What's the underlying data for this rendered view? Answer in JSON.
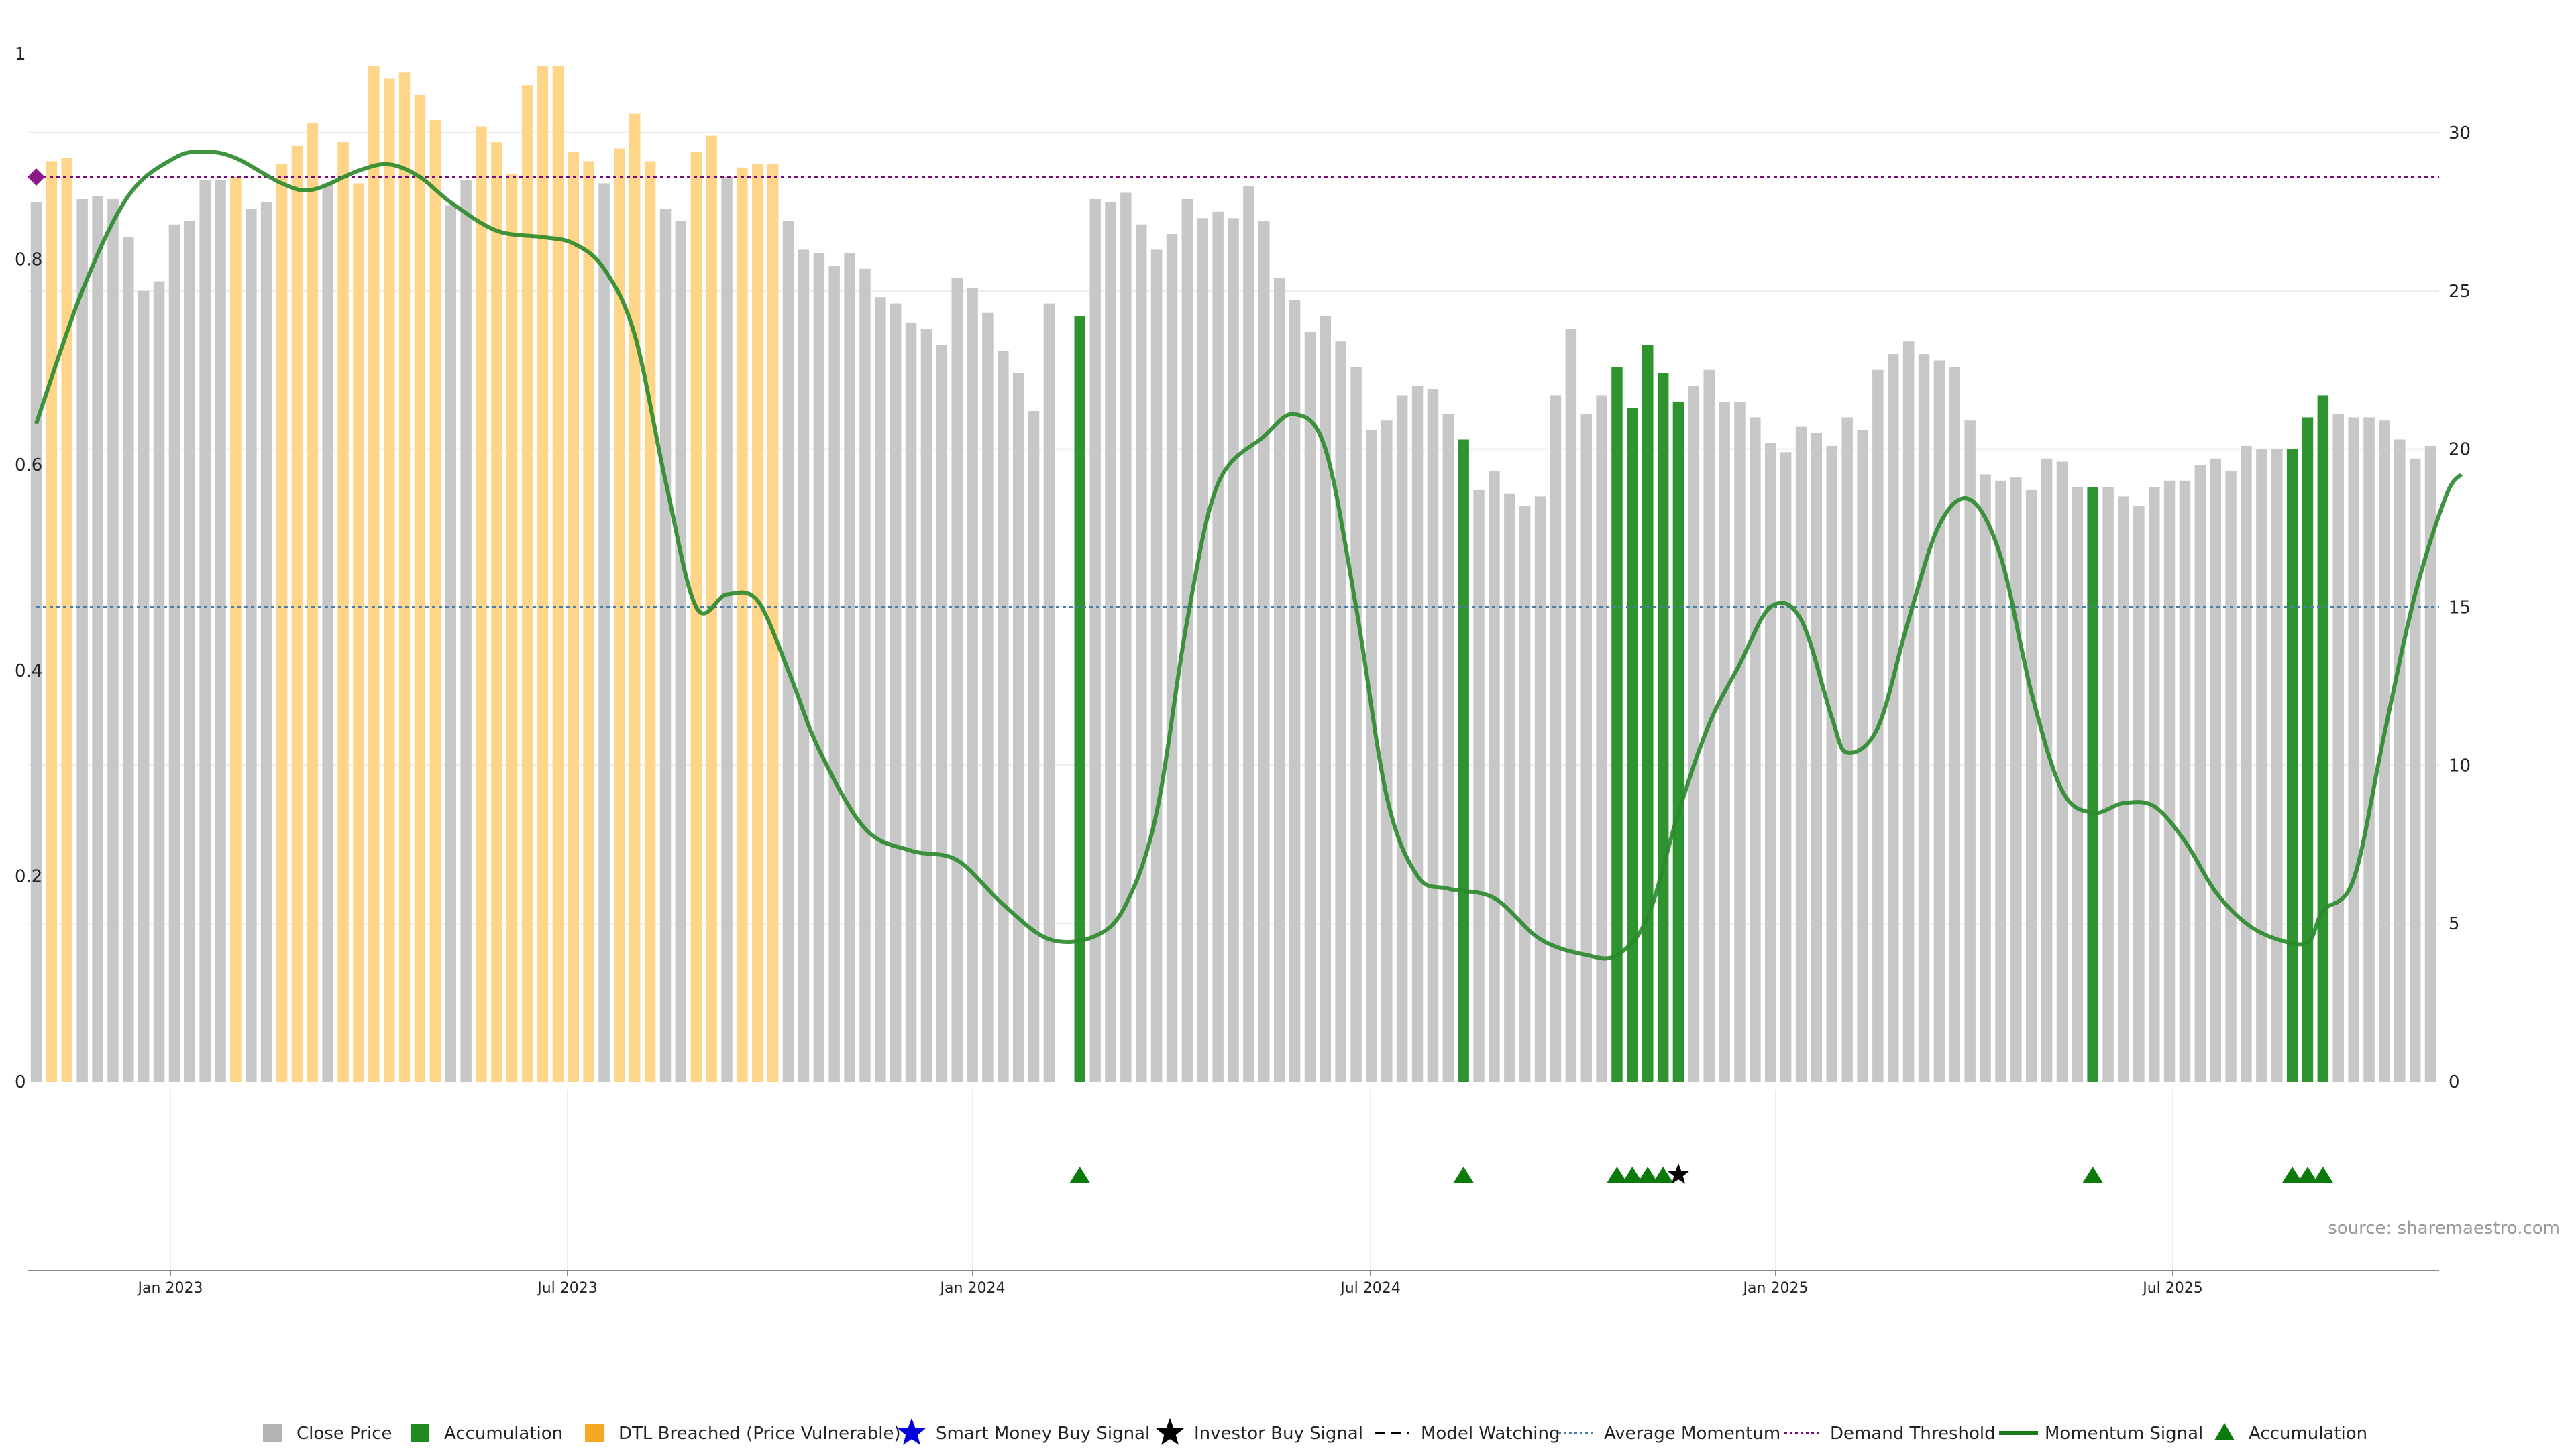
{
  "chart_data": {
    "type": "bar",
    "source": "source: sharemaestro.com",
    "left_axis": {
      "ticks": [
        "0",
        "0.2",
        "0.4",
        "0.6",
        "0.8",
        "1"
      ],
      "range": [
        0,
        1
      ]
    },
    "right_axis": {
      "ticks": [
        "0",
        "5",
        "10",
        "15",
        "20",
        "25",
        "30"
      ],
      "range": [
        0,
        32.5
      ]
    },
    "x_dates": [
      "Jan 2023",
      "Jul 2023",
      "Jan 2024",
      "Jul 2024",
      "Jan 2025",
      "Jul 2025"
    ],
    "bar_categories": [
      "close",
      "accumulation",
      "dtl_breached"
    ],
    "bars": [
      [
        27.8,
        0
      ],
      [
        29.1,
        2
      ],
      [
        29.2,
        2
      ],
      [
        27.9,
        0
      ],
      [
        28.0,
        0
      ],
      [
        27.9,
        0
      ],
      [
        26.7,
        0
      ],
      [
        25.0,
        0
      ],
      [
        25.3,
        0
      ],
      [
        27.1,
        0
      ],
      [
        27.2,
        0
      ],
      [
        28.5,
        0
      ],
      [
        28.5,
        0
      ],
      [
        28.6,
        2
      ],
      [
        27.6,
        0
      ],
      [
        27.8,
        0
      ],
      [
        29.0,
        2
      ],
      [
        29.6,
        2
      ],
      [
        30.3,
        2
      ],
      [
        28.4,
        0
      ],
      [
        29.7,
        2
      ],
      [
        28.4,
        2
      ],
      [
        32.1,
        2
      ],
      [
        31.7,
        2
      ],
      [
        31.9,
        2
      ],
      [
        31.2,
        2
      ],
      [
        30.4,
        2
      ],
      [
        27.7,
        0
      ],
      [
        28.5,
        0
      ],
      [
        30.2,
        2
      ],
      [
        29.7,
        2
      ],
      [
        28.7,
        2
      ],
      [
        31.5,
        2
      ],
      [
        32.1,
        2
      ],
      [
        32.1,
        2
      ],
      [
        29.4,
        2
      ],
      [
        29.1,
        2
      ],
      [
        28.4,
        0
      ],
      [
        29.5,
        2
      ],
      [
        30.6,
        2
      ],
      [
        29.1,
        2
      ],
      [
        27.6,
        0
      ],
      [
        27.2,
        0
      ],
      [
        29.4,
        2
      ],
      [
        29.9,
        2
      ],
      [
        28.6,
        0
      ],
      [
        28.9,
        2
      ],
      [
        29.0,
        2
      ],
      [
        29.0,
        2
      ],
      [
        27.2,
        0
      ],
      [
        26.3,
        0
      ],
      [
        26.2,
        0
      ],
      [
        25.8,
        0
      ],
      [
        26.2,
        0
      ],
      [
        25.7,
        0
      ],
      [
        24.8,
        0
      ],
      [
        24.6,
        0
      ],
      [
        24.0,
        0
      ],
      [
        23.8,
        0
      ],
      [
        23.3,
        0
      ],
      [
        25.4,
        0
      ],
      [
        25.1,
        0
      ],
      [
        24.3,
        0
      ],
      [
        23.1,
        0
      ],
      [
        22.4,
        0
      ],
      [
        21.2,
        0
      ],
      [
        24.6,
        0
      ],
      [
        null,
        0
      ],
      [
        24.2,
        1
      ],
      [
        27.9,
        0
      ],
      [
        27.8,
        0
      ],
      [
        28.1,
        0
      ],
      [
        27.1,
        0
      ],
      [
        26.3,
        0
      ],
      [
        26.8,
        0
      ],
      [
        27.9,
        0
      ],
      [
        27.3,
        0
      ],
      [
        27.5,
        0
      ],
      [
        27.3,
        0
      ],
      [
        28.3,
        0
      ],
      [
        27.2,
        0
      ],
      [
        25.4,
        0
      ],
      [
        24.7,
        0
      ],
      [
        23.7,
        0
      ],
      [
        24.2,
        0
      ],
      [
        23.4,
        0
      ],
      [
        22.6,
        0
      ],
      [
        20.6,
        0
      ],
      [
        20.9,
        0
      ],
      [
        21.7,
        0
      ],
      [
        22.0,
        0
      ],
      [
        21.9,
        0
      ],
      [
        21.1,
        0
      ],
      [
        20.3,
        1
      ],
      [
        18.7,
        0
      ],
      [
        19.3,
        0
      ],
      [
        18.6,
        0
      ],
      [
        18.2,
        0
      ],
      [
        18.5,
        0
      ],
      [
        21.7,
        0
      ],
      [
        23.8,
        0
      ],
      [
        21.1,
        0
      ],
      [
        21.7,
        0
      ],
      [
        22.6,
        1
      ],
      [
        21.3,
        1
      ],
      [
        23.3,
        1
      ],
      [
        22.4,
        1
      ],
      [
        21.5,
        1
      ],
      [
        22.0,
        0
      ],
      [
        22.5,
        0
      ],
      [
        21.5,
        0
      ],
      [
        21.5,
        0
      ],
      [
        21.0,
        0
      ],
      [
        20.2,
        0
      ],
      [
        19.9,
        0
      ],
      [
        20.7,
        0
      ],
      [
        20.5,
        0
      ],
      [
        20.1,
        0
      ],
      [
        21.0,
        0
      ],
      [
        20.6,
        0
      ],
      [
        22.5,
        0
      ],
      [
        23.0,
        0
      ],
      [
        23.4,
        0
      ],
      [
        23.0,
        0
      ],
      [
        22.8,
        0
      ],
      [
        22.6,
        0
      ],
      [
        20.9,
        0
      ],
      [
        19.2,
        0
      ],
      [
        19.0,
        0
      ],
      [
        19.1,
        0
      ],
      [
        18.7,
        0
      ],
      [
        19.7,
        0
      ],
      [
        19.6,
        0
      ],
      [
        18.8,
        0
      ],
      [
        18.8,
        1
      ],
      [
        18.8,
        0
      ],
      [
        18.5,
        0
      ],
      [
        18.2,
        0
      ],
      [
        18.8,
        0
      ],
      [
        19.0,
        0
      ],
      [
        19.0,
        0
      ],
      [
        19.5,
        0
      ],
      [
        19.7,
        0
      ],
      [
        19.3,
        0
      ],
      [
        20.1,
        0
      ],
      [
        20.0,
        0
      ],
      [
        20.0,
        0
      ],
      [
        20.0,
        1
      ],
      [
        21.0,
        1
      ],
      [
        21.7,
        1
      ],
      [
        21.1,
        0
      ],
      [
        21.0,
        0
      ],
      [
        21.0,
        0
      ],
      [
        20.9,
        0
      ],
      [
        20.3,
        0
      ],
      [
        19.7,
        0
      ],
      [
        20.1,
        0
      ]
    ],
    "momentum_signal": [
      [
        0,
        20.8
      ],
      [
        3,
        25.0
      ],
      [
        6,
        28.0
      ],
      [
        9,
        29.2
      ],
      [
        11,
        29.4
      ],
      [
        13,
        29.2
      ],
      [
        16,
        28.4
      ],
      [
        18,
        28.2
      ],
      [
        21,
        28.8
      ],
      [
        23,
        29.0
      ],
      [
        25,
        28.6
      ],
      [
        27,
        27.8
      ],
      [
        30,
        26.9
      ],
      [
        33,
        26.7
      ],
      [
        35,
        26.5
      ],
      [
        37,
        25.7
      ],
      [
        39,
        23.6
      ],
      [
        41,
        19.0
      ],
      [
        43,
        15.0
      ],
      [
        45,
        15.4
      ],
      [
        47,
        15.2
      ],
      [
        49,
        13.0
      ],
      [
        51,
        10.5
      ],
      [
        54,
        8.0
      ],
      [
        57,
        7.3
      ],
      [
        60,
        7.0
      ],
      [
        63,
        5.6
      ],
      [
        66,
        4.5
      ],
      [
        69,
        4.6
      ],
      [
        71,
        5.6
      ],
      [
        73,
        8.5
      ],
      [
        75,
        14.6
      ],
      [
        77,
        18.9
      ],
      [
        80,
        20.4
      ],
      [
        82,
        21.1
      ],
      [
        84,
        20.0
      ],
      [
        86,
        15.0
      ],
      [
        88,
        9.0
      ],
      [
        90,
        6.5
      ],
      [
        92,
        6.1
      ],
      [
        95,
        5.8
      ],
      [
        98,
        4.5
      ],
      [
        101,
        4.0
      ],
      [
        103,
        4.0
      ],
      [
        105,
        5.2
      ],
      [
        107,
        8.5
      ],
      [
        109,
        11.3
      ],
      [
        111,
        13.2
      ],
      [
        113,
        15.0
      ],
      [
        115,
        14.6
      ],
      [
        117,
        11.5
      ],
      [
        118,
        10.4
      ],
      [
        120,
        11.2
      ],
      [
        122,
        14.6
      ],
      [
        124,
        17.6
      ],
      [
        126,
        18.4
      ],
      [
        128,
        16.6
      ],
      [
        130,
        12.3
      ],
      [
        132,
        9.2
      ],
      [
        134,
        8.5
      ],
      [
        136,
        8.8
      ],
      [
        138,
        8.7
      ],
      [
        140,
        7.6
      ],
      [
        142,
        6.0
      ],
      [
        144,
        5.0
      ],
      [
        146,
        4.5
      ],
      [
        148,
        4.4
      ],
      [
        149,
        5.4
      ],
      [
        151,
        6.4
      ],
      [
        153,
        11.0
      ],
      [
        155,
        15.4
      ],
      [
        157,
        18.5
      ],
      [
        158,
        19.2
      ]
    ],
    "average_momentum": 15.0,
    "demand_threshold": 28.6,
    "signals": [
      {
        "type": "accumulation",
        "index": 68
      },
      {
        "type": "accumulation",
        "index": 93
      },
      {
        "type": "accumulation",
        "index": 103
      },
      {
        "type": "accumulation",
        "index": 104
      },
      {
        "type": "accumulation",
        "index": 105
      },
      {
        "type": "accumulation",
        "index": 106
      },
      {
        "type": "investor_buy",
        "index": 107
      },
      {
        "type": "accumulation",
        "index": 134
      },
      {
        "type": "accumulation",
        "index": 147
      },
      {
        "type": "accumulation",
        "index": 148
      },
      {
        "type": "accumulation",
        "index": 149
      }
    ],
    "legend": [
      {
        "label": "Close Price",
        "symbol": "square",
        "color": "#b3b3b3"
      },
      {
        "label": "Accumulation",
        "symbol": "square",
        "color": "#1f8a1f"
      },
      {
        "label": "DTL Breached (Price Vulnerable)",
        "symbol": "square",
        "color": "#f7a823"
      },
      {
        "label": "Smart Money Buy Signal",
        "symbol": "star",
        "color": "#0000dd"
      },
      {
        "label": "Investor Buy Signal",
        "symbol": "star",
        "color": "#000000"
      },
      {
        "label": "Model Watching",
        "symbol": "dash",
        "color": "#000000"
      },
      {
        "label": "Average Momentum",
        "symbol": "dotted",
        "color": "#4a7ea8"
      },
      {
        "label": "Demand Threshold",
        "symbol": "dotted",
        "color": "#7a0a7a"
      },
      {
        "label": "Momentum Signal",
        "symbol": "line",
        "color": "#1a7a1a"
      },
      {
        "label": "Accumulation",
        "symbol": "triangle",
        "color": "#0b7a0b"
      }
    ],
    "colors": {
      "close": "#c7c7c7",
      "accumulation": "#2e9430",
      "dtl_breached": "#ffd58a",
      "momentum": "#2a8a2a",
      "average_momentum": "#4a7ea8",
      "demand_threshold": "#7a0a7a",
      "signal_triangle": "#0b7a0b",
      "investor_star": "#000000",
      "grid": "#ececec",
      "axis": "#888888"
    }
  }
}
